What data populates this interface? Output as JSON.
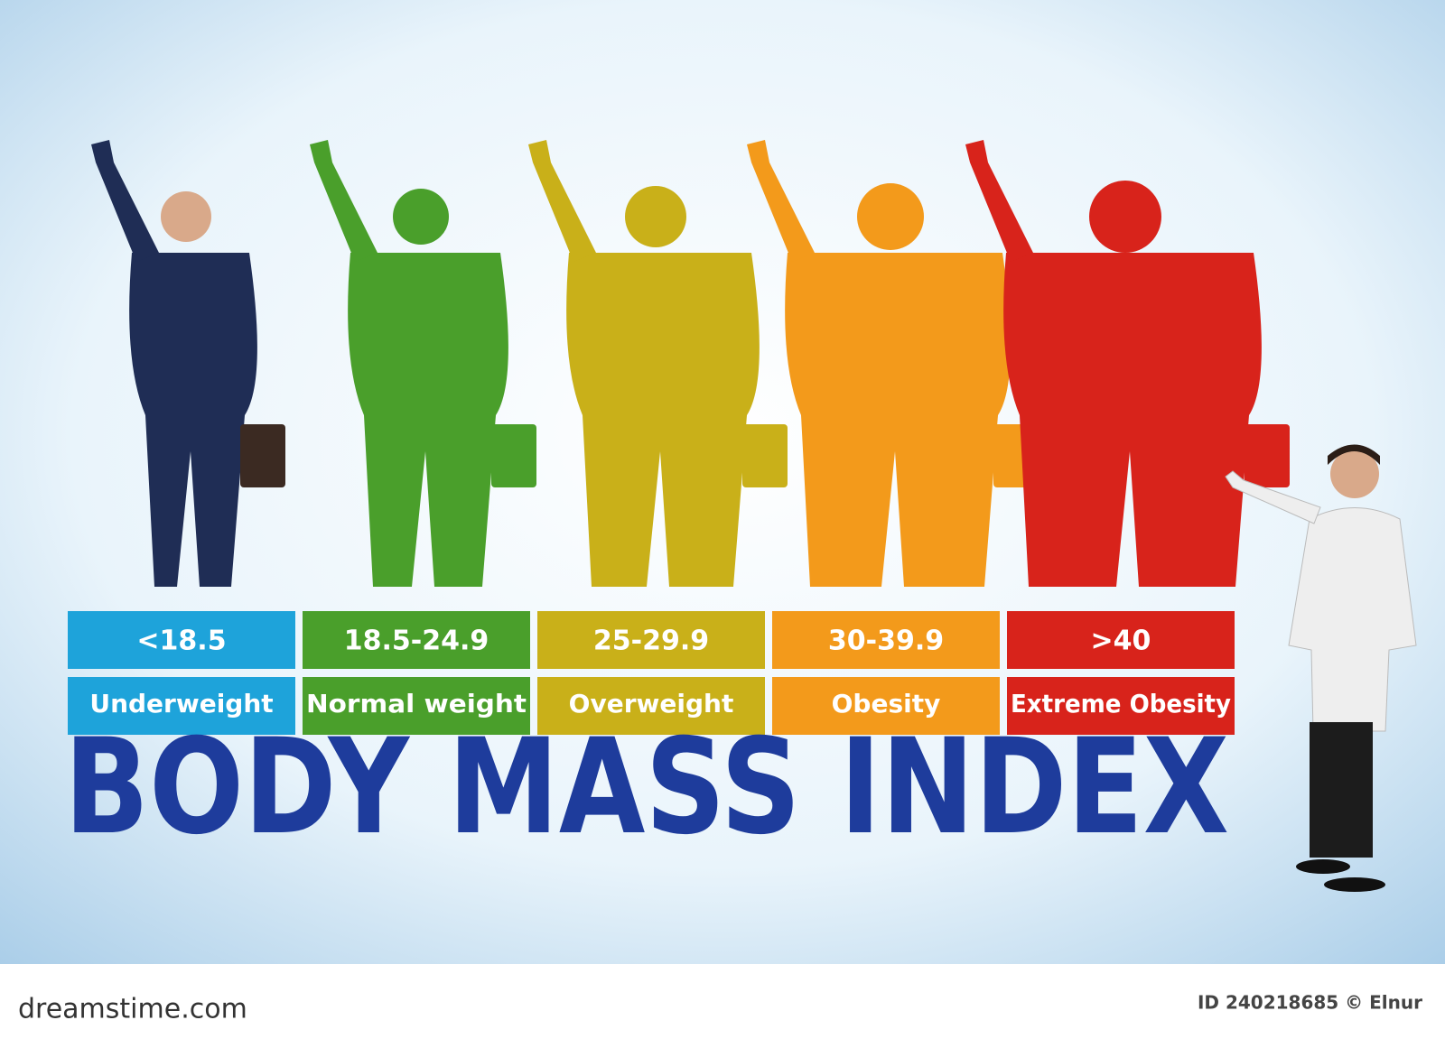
{
  "title": "BODY MASS INDEX",
  "categories": [
    {
      "range": "<18.5",
      "label": "Underweight",
      "color": "#1ea3da"
    },
    {
      "range": "18.5-24.9",
      "label": "Normal weight",
      "color": "#4a9f2b"
    },
    {
      "range": "25-29.9",
      "label": "Overweight",
      "color": "#c9b019"
    },
    {
      "range": "30-39.9",
      "label": "Obesity",
      "color": "#f39a1b"
    },
    {
      "range": ">40",
      "label": "Extreme Obesity",
      "color": "#d8231b"
    }
  ],
  "footer": {
    "site": "dreamstime.com",
    "credit": "ID 240218685 © Elnur"
  }
}
